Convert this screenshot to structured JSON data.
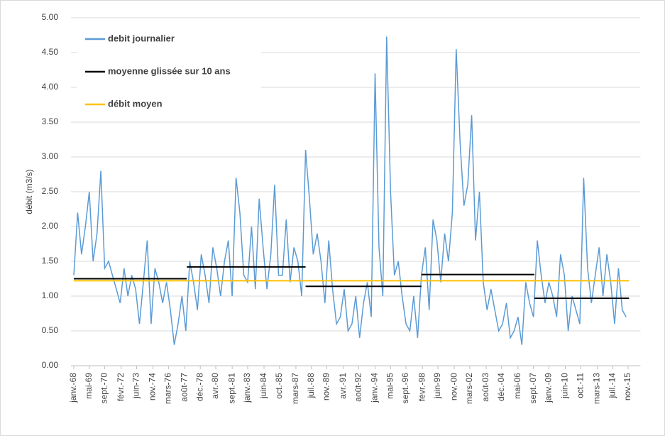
{
  "chart_data": {
    "type": "line",
    "y_label": "débit (m3/s)",
    "xlim": [
      "1968-01",
      "2015-12"
    ],
    "ylim": [
      0,
      5
    ],
    "yticks": [
      {
        "value": 0,
        "label": "0.00"
      },
      {
        "value": 0.5,
        "label": "0.50"
      },
      {
        "value": 1,
        "label": "1.00"
      },
      {
        "value": 1.5,
        "label": "1.50"
      },
      {
        "value": 2,
        "label": "2.00"
      },
      {
        "value": 2.5,
        "label": "2.50"
      },
      {
        "value": 3,
        "label": "3.00"
      },
      {
        "value": 3.5,
        "label": "3.50"
      },
      {
        "value": 4,
        "label": "4.00"
      },
      {
        "value": 4.5,
        "label": "4.50"
      },
      {
        "value": 5,
        "label": "5.00"
      }
    ],
    "xticks": [
      {
        "value": "1968-01",
        "label": "janv.-68"
      },
      {
        "value": "1969-05",
        "label": "mai-69"
      },
      {
        "value": "1970-09",
        "label": "sept.-70"
      },
      {
        "value": "1972-02",
        "label": "févr.-72"
      },
      {
        "value": "1973-06",
        "label": "juin-73"
      },
      {
        "value": "1974-11",
        "label": "nov.-74"
      },
      {
        "value": "1976-03",
        "label": "mars-76"
      },
      {
        "value": "1977-08",
        "label": "août-77"
      },
      {
        "value": "1978-12",
        "label": "déc.-78"
      },
      {
        "value": "1980-04",
        "label": "avr.-80"
      },
      {
        "value": "1981-09",
        "label": "sept.-81"
      },
      {
        "value": "1983-01",
        "label": "janv.-83"
      },
      {
        "value": "1984-06",
        "label": "juin-84"
      },
      {
        "value": "1985-10",
        "label": "oct.-85"
      },
      {
        "value": "1987-03",
        "label": "mars-87"
      },
      {
        "value": "1988-07",
        "label": "juil.-88"
      },
      {
        "value": "1989-11",
        "label": "nov.-89"
      },
      {
        "value": "1991-04",
        "label": "avr.-91"
      },
      {
        "value": "1992-08",
        "label": "août-92"
      },
      {
        "value": "1994-01",
        "label": "janv.-94"
      },
      {
        "value": "1995-05",
        "label": "mai-95"
      },
      {
        "value": "1996-09",
        "label": "sept.-96"
      },
      {
        "value": "1998-02",
        "label": "févr.-98"
      },
      {
        "value": "1999-06",
        "label": "juin-99"
      },
      {
        "value": "2000-11",
        "label": "nov.-00"
      },
      {
        "value": "2002-03",
        "label": "mars-02"
      },
      {
        "value": "2003-08",
        "label": "août-03"
      },
      {
        "value": "2004-12",
        "label": "déc.-04"
      },
      {
        "value": "2006-05",
        "label": "mai-06"
      },
      {
        "value": "2007-09",
        "label": "sept.-07"
      },
      {
        "value": "2009-01",
        "label": "janv.-09"
      },
      {
        "value": "2010-06",
        "label": "juin-10"
      },
      {
        "value": "2011-10",
        "label": "oct.-11"
      },
      {
        "value": "2013-03",
        "label": "mars-13"
      },
      {
        "value": "2014-07",
        "label": "juil.-14"
      },
      {
        "value": "2015-11",
        "label": "nov.-15"
      }
    ],
    "grid": true,
    "series": [
      {
        "name": "debit journalier",
        "color": "#5b9bd5",
        "x": [
          "1968-01",
          "1968-05",
          "1968-09",
          "1969-01",
          "1969-05",
          "1969-09",
          "1970-01",
          "1970-05",
          "1970-09",
          "1971-01",
          "1971-05",
          "1971-09",
          "1972-01",
          "1972-05",
          "1972-09",
          "1973-01",
          "1973-05",
          "1973-09",
          "1974-01",
          "1974-05",
          "1974-09",
          "1975-01",
          "1975-05",
          "1975-09",
          "1976-01",
          "1976-05",
          "1976-09",
          "1977-01",
          "1977-05",
          "1977-09",
          "1978-01",
          "1978-05",
          "1978-09",
          "1979-01",
          "1979-05",
          "1979-09",
          "1980-01",
          "1980-05",
          "1980-09",
          "1981-01",
          "1981-05",
          "1981-09",
          "1982-01",
          "1982-05",
          "1982-09",
          "1983-01",
          "1983-05",
          "1983-09",
          "1984-01",
          "1984-05",
          "1984-09",
          "1985-01",
          "1985-05",
          "1985-09",
          "1986-01",
          "1986-05",
          "1986-09",
          "1987-01",
          "1987-05",
          "1987-09",
          "1988-01",
          "1988-05",
          "1988-09",
          "1989-01",
          "1989-05",
          "1989-09",
          "1990-01",
          "1990-05",
          "1990-09",
          "1991-01",
          "1991-05",
          "1991-09",
          "1992-01",
          "1992-05",
          "1992-09",
          "1993-01",
          "1993-05",
          "1993-09",
          "1994-01",
          "1994-05",
          "1994-09",
          "1995-01",
          "1995-05",
          "1995-09",
          "1996-01",
          "1996-05",
          "1996-09",
          "1997-01",
          "1997-05",
          "1997-09",
          "1998-01",
          "1998-05",
          "1998-09",
          "1999-01",
          "1999-05",
          "1999-09",
          "2000-01",
          "2000-05",
          "2000-09",
          "2001-01",
          "2001-05",
          "2001-09",
          "2002-01",
          "2002-05",
          "2002-09",
          "2003-01",
          "2003-05",
          "2003-09",
          "2004-01",
          "2004-05",
          "2004-09",
          "2005-01",
          "2005-05",
          "2005-09",
          "2006-01",
          "2006-05",
          "2006-09",
          "2007-01",
          "2007-05",
          "2007-09",
          "2008-01",
          "2008-05",
          "2008-09",
          "2009-01",
          "2009-05",
          "2009-09",
          "2010-01",
          "2010-05",
          "2010-09",
          "2011-01",
          "2011-05",
          "2011-09",
          "2012-01",
          "2012-05",
          "2012-09",
          "2013-01",
          "2013-05",
          "2013-09",
          "2014-01",
          "2014-05",
          "2014-09",
          "2015-01",
          "2015-05",
          "2015-09"
        ],
        "values": [
          1.3,
          2.2,
          1.6,
          2.0,
          2.5,
          1.5,
          1.9,
          2.8,
          1.4,
          1.5,
          1.3,
          1.1,
          0.9,
          1.4,
          1.0,
          1.3,
          1.1,
          0.6,
          1.2,
          1.8,
          0.6,
          1.4,
          1.2,
          0.9,
          1.2,
          0.8,
          0.3,
          0.6,
          1.0,
          0.5,
          1.5,
          1.2,
          0.8,
          1.6,
          1.3,
          0.9,
          1.7,
          1.4,
          1.0,
          1.5,
          1.8,
          1.0,
          2.7,
          2.2,
          1.3,
          1.2,
          2.0,
          1.1,
          2.4,
          1.7,
          1.1,
          1.6,
          2.6,
          1.3,
          1.3,
          2.1,
          1.2,
          1.7,
          1.5,
          1.0,
          3.1,
          2.4,
          1.6,
          1.9,
          1.5,
          0.9,
          1.8,
          1.1,
          0.6,
          0.7,
          1.1,
          0.5,
          0.6,
          1.0,
          0.4,
          0.9,
          1.2,
          0.7,
          4.2,
          1.7,
          1.0,
          4.73,
          2.5,
          1.3,
          1.5,
          1.0,
          0.6,
          0.5,
          1.0,
          0.4,
          1.3,
          1.7,
          0.8,
          2.1,
          1.8,
          1.2,
          1.9,
          1.5,
          2.2,
          4.55,
          3.2,
          2.3,
          2.6,
          3.6,
          1.8,
          2.5,
          1.2,
          0.8,
          1.1,
          0.8,
          0.5,
          0.6,
          0.9,
          0.4,
          0.5,
          0.7,
          0.3,
          1.2,
          0.9,
          0.7,
          1.8,
          1.3,
          0.9,
          1.2,
          1.0,
          0.7,
          1.6,
          1.3,
          0.5,
          1.0,
          0.8,
          0.6,
          2.7,
          1.4,
          0.9,
          1.3,
          1.7,
          1.0,
          1.6,
          1.2,
          0.6,
          1.4,
          0.8,
          0.7
        ]
      },
      {
        "name": "moyenne glissée sur 10 ans",
        "color": "#000000",
        "segments": [
          {
            "start": "1968-01",
            "end": "1977-10",
            "value": 1.25
          },
          {
            "start": "1977-10",
            "end": "1988-01",
            "value": 1.42
          },
          {
            "start": "1988-01",
            "end": "1998-01",
            "value": 1.14
          },
          {
            "start": "1998-01",
            "end": "2007-10",
            "value": 1.31
          },
          {
            "start": "2007-10",
            "end": "2015-12",
            "value": 0.97
          }
        ]
      },
      {
        "name": "débit moyen",
        "color": "#ffc000",
        "x": [
          "1968-01",
          "2015-12"
        ],
        "values": [
          1.22,
          1.22
        ]
      }
    ]
  }
}
